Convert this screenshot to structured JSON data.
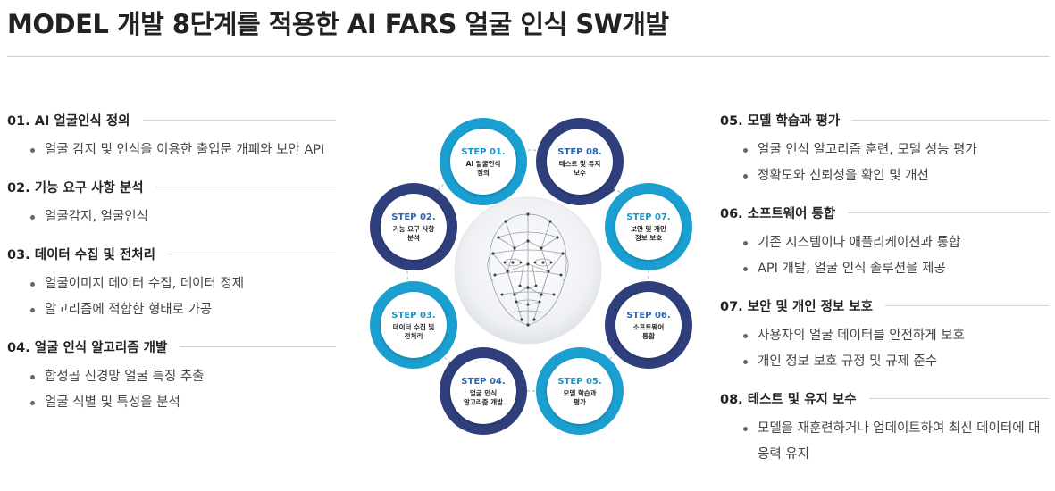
{
  "header": {
    "title": "MODEL 개발 8단계를 적용한 AI FARS 얼굴 인식 SW개발"
  },
  "left_sections": [
    {
      "title": "01. AI 얼굴인식 정의",
      "bullets": [
        "얼굴 감지 및 인식을 이용한 출입문 개폐와 보안 API"
      ]
    },
    {
      "title": "02. 기능 요구 사항 분석",
      "bullets": [
        "얼굴감지, 얼굴인식"
      ]
    },
    {
      "title": "03. 데이터 수집 및 전처리",
      "bullets": [
        "얼굴이미지 데이터 수집, 데이터 정제",
        "알고리즘에 적합한 형태로 가공"
      ]
    },
    {
      "title": "04. 얼굴 인식 알고리즘 개발",
      "bullets": [
        "합성곱 신경망 얼굴 특징 추출",
        "얼굴 식별 및 특성을 분석"
      ]
    }
  ],
  "right_sections": [
    {
      "title": "05. 모델 학습과 평가",
      "bullets": [
        "얼굴 인식 알고리즘 훈련, 모델 성능 평가",
        "정확도와 신뢰성을 확인 및 개선"
      ]
    },
    {
      "title": "06. 소프트웨어 통합",
      "bullets": [
        "기존 시스템이나 애플리케이션과 통합",
        "API 개발, 얼굴 인식 솔루션을 제공"
      ]
    },
    {
      "title": "07. 보안 및 개인 정보 보호",
      "bullets": [
        "사용자의 얼굴 데이터를 안전하게 보호",
        "개인 정보 보호 규정 및 규제 준수"
      ]
    },
    {
      "title": "08. 테스트 및 유지 보수",
      "bullets": [
        "모델을 재훈련하거나 업데이트하여 최신 데이터에 대응력 유지"
      ]
    }
  ],
  "diagram": {
    "colors": {
      "dark": "#2e3f7c",
      "light": "#1a9fd0"
    },
    "face_icon": "wireframe-face-icon",
    "steps": [
      {
        "label": "STEP 01.",
        "desc": [
          "AI 얼굴인식",
          "정의"
        ]
      },
      {
        "label": "STEP 02.",
        "desc": [
          "기능 요구 사항",
          "분석"
        ]
      },
      {
        "label": "STEP 03.",
        "desc": [
          "데이터 수집 및",
          "전처리"
        ]
      },
      {
        "label": "STEP 04.",
        "desc": [
          "얼굴 인식",
          "알고리즘 개발"
        ]
      },
      {
        "label": "STEP 05.",
        "desc": [
          "모델 학습과",
          "평가"
        ]
      },
      {
        "label": "STEP 06.",
        "desc": [
          "소프트웨어",
          "통합"
        ]
      },
      {
        "label": "STEP 07.",
        "desc": [
          "보안 및 개인",
          "정보 보호"
        ]
      },
      {
        "label": "STEP 08.",
        "desc": [
          "테스트 및 유지",
          "보수"
        ]
      }
    ]
  }
}
